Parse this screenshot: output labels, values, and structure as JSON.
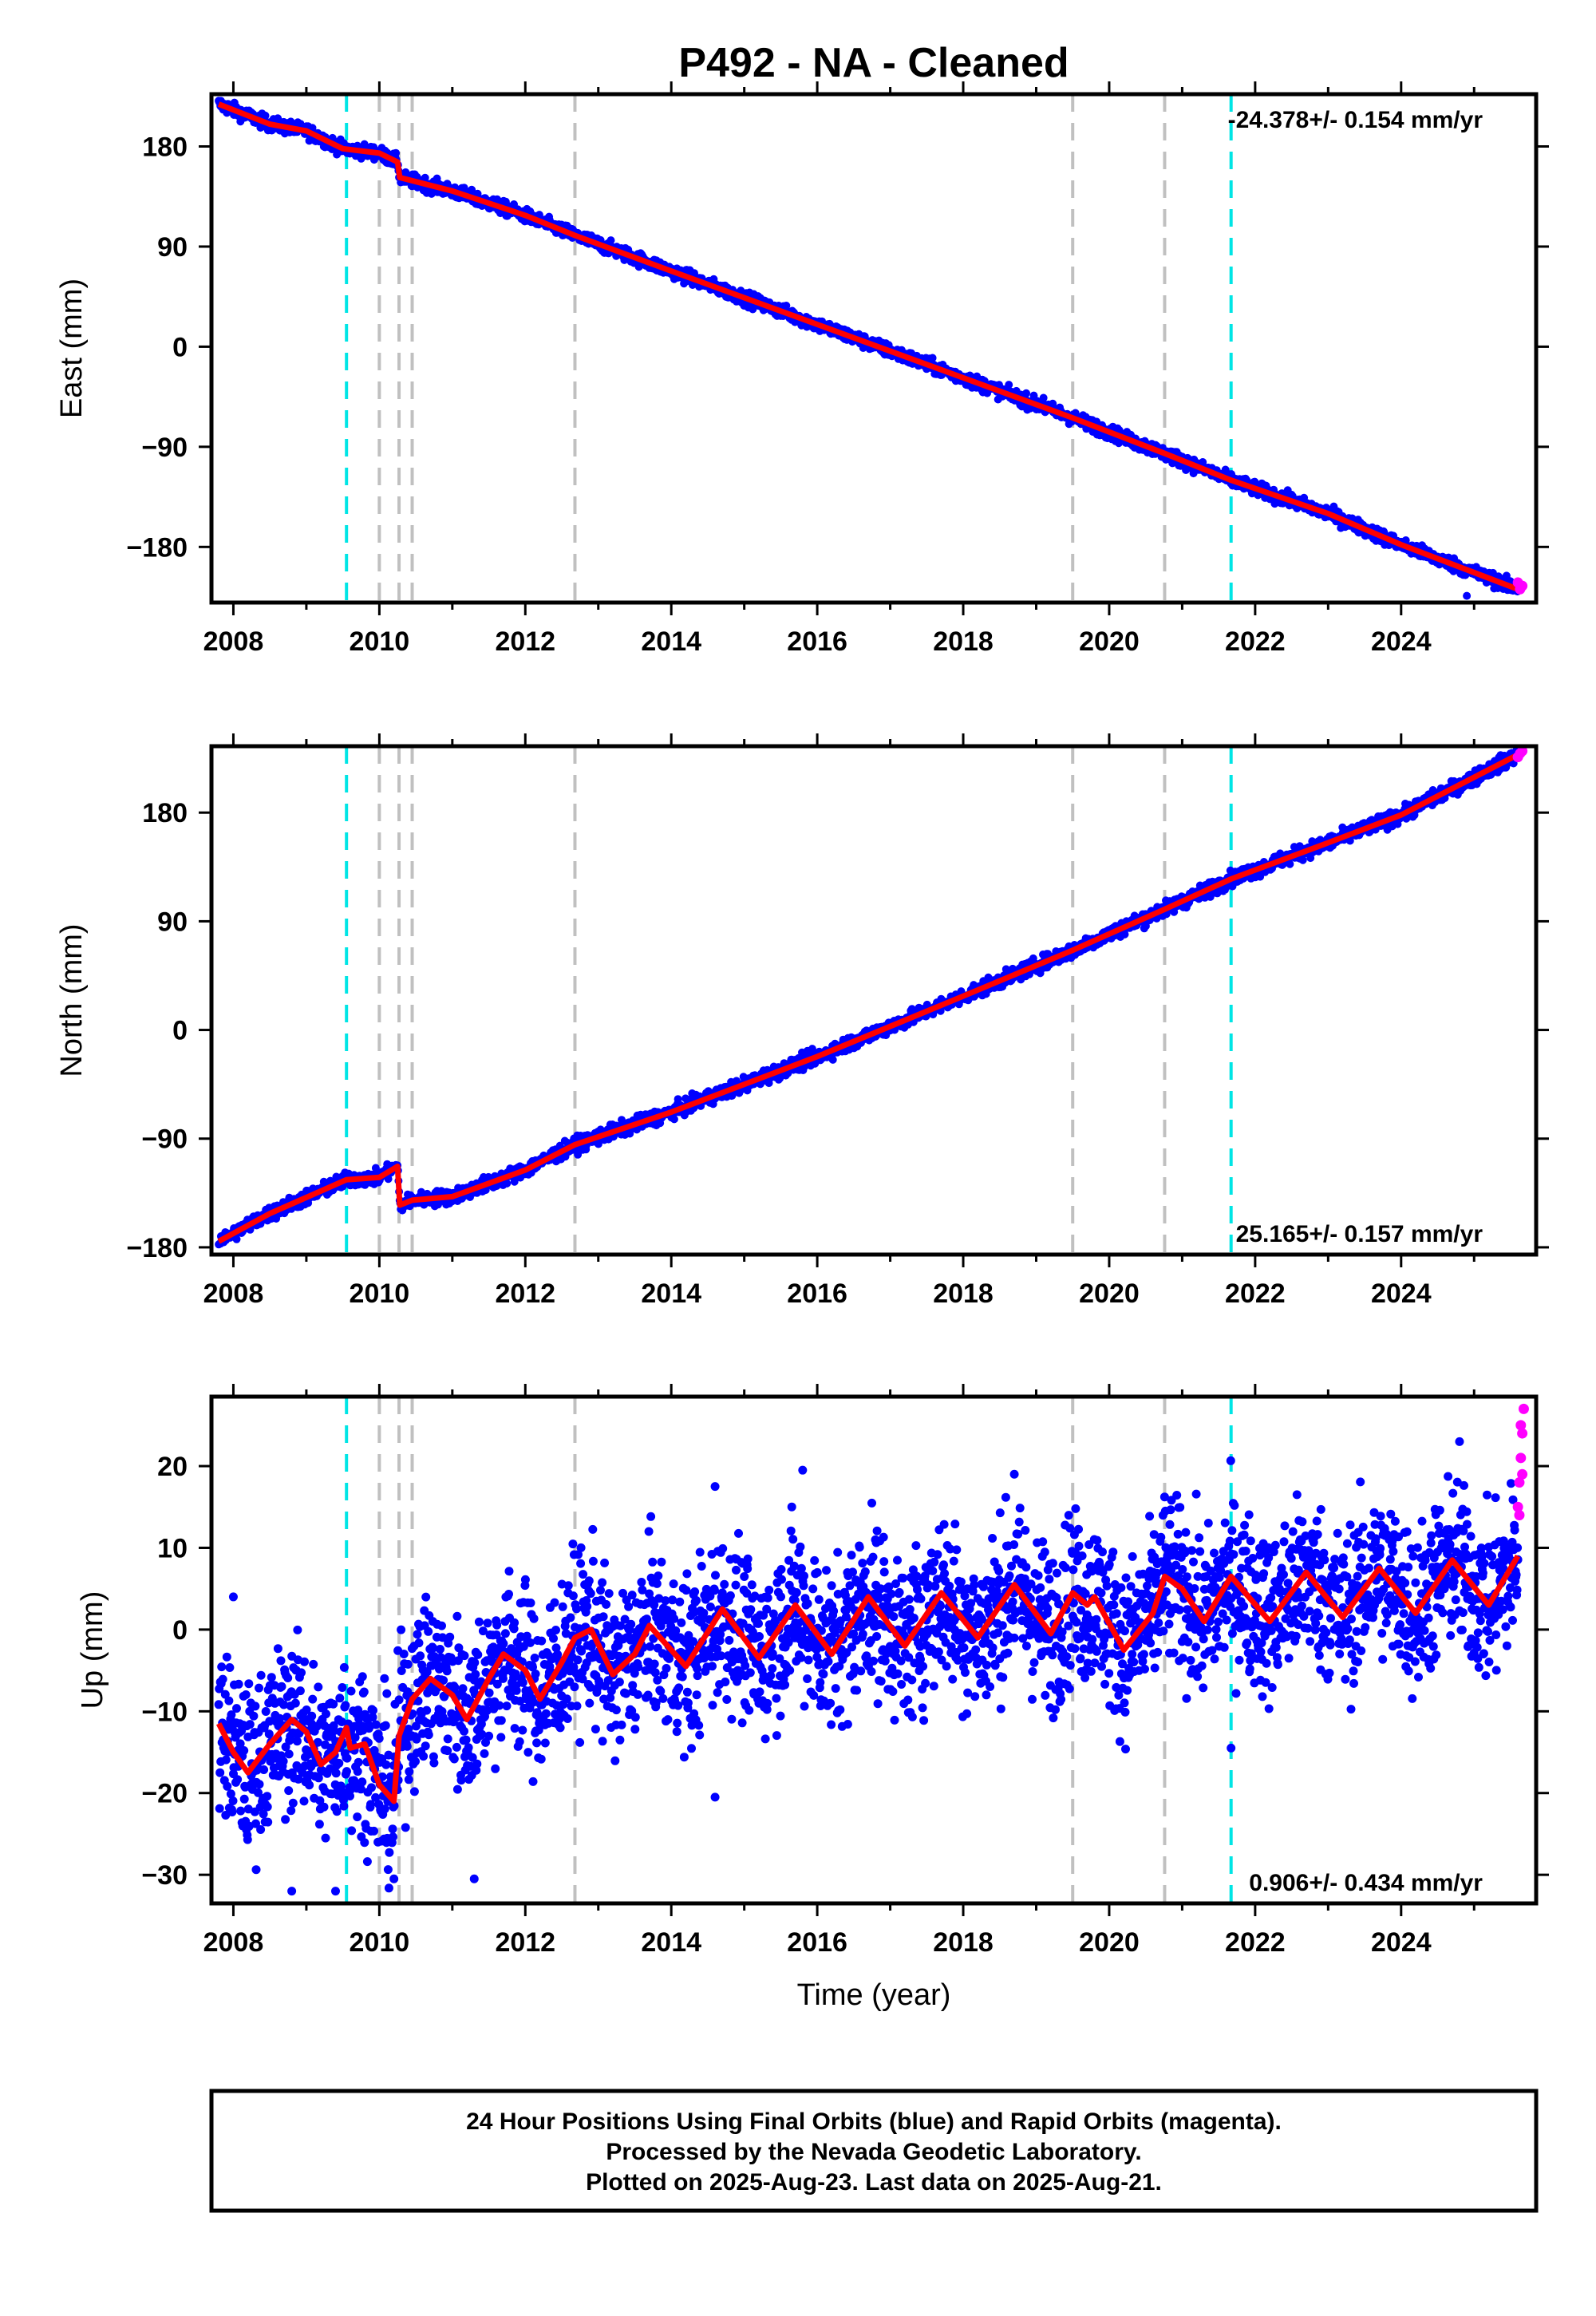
{
  "chart_data": {
    "type": "scatter",
    "title": "P492  - NA - Cleaned",
    "xlabel": "Time (year)",
    "xlim": [
      2007.7,
      2025.85
    ],
    "x_ticks": [
      2008,
      2010,
      2012,
      2014,
      2016,
      2018,
      2020,
      2022,
      2024
    ],
    "x_tick_labels": [
      "2008",
      "2010",
      "2012",
      "2014",
      "2016",
      "2018",
      "2020",
      "2022",
      "2024"
    ],
    "event_lines": {
      "cyan": [
        2009.55,
        2021.67
      ],
      "gray": [
        2010.0,
        2010.27,
        2010.45,
        2012.68,
        2019.5,
        2020.76
      ]
    },
    "colors": {
      "final_orbits": "#0000ff",
      "rapid_orbits": "#ff00ff",
      "model": "#ff0000",
      "cyan_line": "#00e5e5",
      "gray_line": "#c0c0c0"
    },
    "panels": [
      {
        "id": "east",
        "ylabel": "East (mm)",
        "ylim": [
          -230,
          227
        ],
        "y_ticks": [
          180,
          90,
          0,
          -90,
          -180
        ],
        "y_tick_labels": [
          "180",
          "90",
          "0",
          "−90",
          "−180"
        ],
        "rate_label": "-24.378+/- 0.154 mm/yr",
        "rate_position": "top-right",
        "model_points": [
          {
            "x": 2007.8,
            "y": 218
          },
          {
            "x": 2008.5,
            "y": 200
          },
          {
            "x": 2009.0,
            "y": 194
          },
          {
            "x": 2009.5,
            "y": 178
          },
          {
            "x": 2010.0,
            "y": 174
          },
          {
            "x": 2010.25,
            "y": 166
          },
          {
            "x": 2010.28,
            "y": 152
          },
          {
            "x": 2011.0,
            "y": 140
          },
          {
            "x": 2012.0,
            "y": 118
          },
          {
            "x": 2012.68,
            "y": 100
          },
          {
            "x": 2014.0,
            "y": 68
          },
          {
            "x": 2016.0,
            "y": 20
          },
          {
            "x": 2018.0,
            "y": -28
          },
          {
            "x": 2019.5,
            "y": -64
          },
          {
            "x": 2020.76,
            "y": -96
          },
          {
            "x": 2021.67,
            "y": -120
          },
          {
            "x": 2023.0,
            "y": -150
          },
          {
            "x": 2024.0,
            "y": -178
          },
          {
            "x": 2025.6,
            "y": -218
          }
        ],
        "scatter_noise_mm": 3,
        "outliers": [
          {
            "x": 2019.1,
            "y": -46
          },
          {
            "x": 2024.9,
            "y": -224
          }
        ],
        "rapid_points": [
          {
            "x": 2025.6,
            "y": -212
          },
          {
            "x": 2025.63,
            "y": -218
          },
          {
            "x": 2025.66,
            "y": -215
          }
        ]
      },
      {
        "id": "north",
        "ylabel": "North (mm)",
        "ylim": [
          -186,
          235
        ],
        "y_ticks": [
          180,
          90,
          0,
          -90,
          -180
        ],
        "y_tick_labels": [
          "180",
          "90",
          "0",
          "−90",
          "−180"
        ],
        "rate_label": "25.165+/- 0.157 mm/yr",
        "rate_position": "bottom-right",
        "model_points": [
          {
            "x": 2007.8,
            "y": -175
          },
          {
            "x": 2008.5,
            "y": -152
          },
          {
            "x": 2009.55,
            "y": -124
          },
          {
            "x": 2010.0,
            "y": -122
          },
          {
            "x": 2010.25,
            "y": -113
          },
          {
            "x": 2010.28,
            "y": -145
          },
          {
            "x": 2010.45,
            "y": -141
          },
          {
            "x": 2011.0,
            "y": -138
          },
          {
            "x": 2012.0,
            "y": -116
          },
          {
            "x": 2012.68,
            "y": -95
          },
          {
            "x": 2014.0,
            "y": -68
          },
          {
            "x": 2016.0,
            "y": -22
          },
          {
            "x": 2018.0,
            "y": 28
          },
          {
            "x": 2019.5,
            "y": 66
          },
          {
            "x": 2020.76,
            "y": 100
          },
          {
            "x": 2021.67,
            "y": 125
          },
          {
            "x": 2023.0,
            "y": 155
          },
          {
            "x": 2024.0,
            "y": 178
          },
          {
            "x": 2025.6,
            "y": 228
          }
        ],
        "scatter_noise_mm": 3,
        "outliers": [],
        "rapid_points": [
          {
            "x": 2025.6,
            "y": 226
          },
          {
            "x": 2025.63,
            "y": 229
          },
          {
            "x": 2025.66,
            "y": 231
          }
        ]
      },
      {
        "id": "up",
        "ylabel": "Up (mm)",
        "ylim": [
          -33.5,
          28.5
        ],
        "y_ticks": [
          20,
          10,
          0,
          -10,
          -20,
          -30
        ],
        "y_tick_labels": [
          "20",
          "10",
          "0",
          "−10",
          "−20",
          "−30"
        ],
        "rate_label": "0.906+/- 0.434 mm/yr",
        "rate_position": "bottom-right",
        "model_points": [
          {
            "x": 2007.8,
            "y": -11.5
          },
          {
            "x": 2008.0,
            "y": -15
          },
          {
            "x": 2008.2,
            "y": -17.5
          },
          {
            "x": 2008.5,
            "y": -14
          },
          {
            "x": 2008.8,
            "y": -11
          },
          {
            "x": 2009.0,
            "y": -12.5
          },
          {
            "x": 2009.2,
            "y": -16.5
          },
          {
            "x": 2009.4,
            "y": -15
          },
          {
            "x": 2009.55,
            "y": -12
          },
          {
            "x": 2009.6,
            "y": -14.5
          },
          {
            "x": 2009.8,
            "y": -14
          },
          {
            "x": 2010.0,
            "y": -19
          },
          {
            "x": 2010.2,
            "y": -21
          },
          {
            "x": 2010.27,
            "y": -13
          },
          {
            "x": 2010.45,
            "y": -8.5
          },
          {
            "x": 2010.7,
            "y": -6
          },
          {
            "x": 2011.0,
            "y": -8
          },
          {
            "x": 2011.2,
            "y": -11
          },
          {
            "x": 2011.5,
            "y": -6
          },
          {
            "x": 2011.7,
            "y": -3
          },
          {
            "x": 2012.0,
            "y": -5
          },
          {
            "x": 2012.2,
            "y": -8.5
          },
          {
            "x": 2012.5,
            "y": -4
          },
          {
            "x": 2012.68,
            "y": -1
          },
          {
            "x": 2012.9,
            "y": 0
          },
          {
            "x": 2013.2,
            "y": -5.5
          },
          {
            "x": 2013.5,
            "y": -3
          },
          {
            "x": 2013.7,
            "y": 0.5
          },
          {
            "x": 2014.2,
            "y": -4.5
          },
          {
            "x": 2014.7,
            "y": 2.5
          },
          {
            "x": 2015.2,
            "y": -3.5
          },
          {
            "x": 2015.7,
            "y": 3
          },
          {
            "x": 2016.2,
            "y": -3
          },
          {
            "x": 2016.7,
            "y": 4
          },
          {
            "x": 2017.2,
            "y": -2
          },
          {
            "x": 2017.7,
            "y": 4.5
          },
          {
            "x": 2018.2,
            "y": -1
          },
          {
            "x": 2018.7,
            "y": 5.5
          },
          {
            "x": 2019.2,
            "y": -0.5
          },
          {
            "x": 2019.5,
            "y": 4.5
          },
          {
            "x": 2019.7,
            "y": 3
          },
          {
            "x": 2019.8,
            "y": 4
          },
          {
            "x": 2020.2,
            "y": -2.5
          },
          {
            "x": 2020.6,
            "y": 2
          },
          {
            "x": 2020.76,
            "y": 6.5
          },
          {
            "x": 2021.0,
            "y": 5
          },
          {
            "x": 2021.3,
            "y": 1
          },
          {
            "x": 2021.67,
            "y": 6.5
          },
          {
            "x": 2022.2,
            "y": 1
          },
          {
            "x": 2022.7,
            "y": 7
          },
          {
            "x": 2023.2,
            "y": 1.5
          },
          {
            "x": 2023.7,
            "y": 7.5
          },
          {
            "x": 2024.2,
            "y": 2
          },
          {
            "x": 2024.7,
            "y": 8.5
          },
          {
            "x": 2025.2,
            "y": 3
          },
          {
            "x": 2025.6,
            "y": 9
          }
        ],
        "scatter_noise_mm": 5,
        "outliers": [
          {
            "x": 2008.0,
            "y": 4
          },
          {
            "x": 2008.8,
            "y": -32
          },
          {
            "x": 2009.4,
            "y": -32
          },
          {
            "x": 2010.2,
            "y": -30.5
          },
          {
            "x": 2011.3,
            "y": -30.5
          },
          {
            "x": 2014.6,
            "y": 17.5
          },
          {
            "x": 2014.6,
            "y": -20.5
          },
          {
            "x": 2015.8,
            "y": 19.5
          },
          {
            "x": 2018.7,
            "y": 19
          },
          {
            "x": 2021.67,
            "y": -14.5
          },
          {
            "x": 2024.8,
            "y": 23
          }
        ],
        "rapid_points": [
          {
            "x": 2025.6,
            "y": 15
          },
          {
            "x": 2025.62,
            "y": 18
          },
          {
            "x": 2025.64,
            "y": 21
          },
          {
            "x": 2025.66,
            "y": 24
          },
          {
            "x": 2025.68,
            "y": 27
          },
          {
            "x": 2025.62,
            "y": 14
          },
          {
            "x": 2025.66,
            "y": 19
          },
          {
            "x": 2025.64,
            "y": 25
          }
        ]
      }
    ],
    "footer_lines": [
      "24 Hour Positions Using Final Orbits (blue) and Rapid Orbits (magenta).",
      "Processed by the Nevada Geodetic Laboratory.",
      "Plotted on 2025-Aug-23. Last data on 2025-Aug-21."
    ]
  }
}
